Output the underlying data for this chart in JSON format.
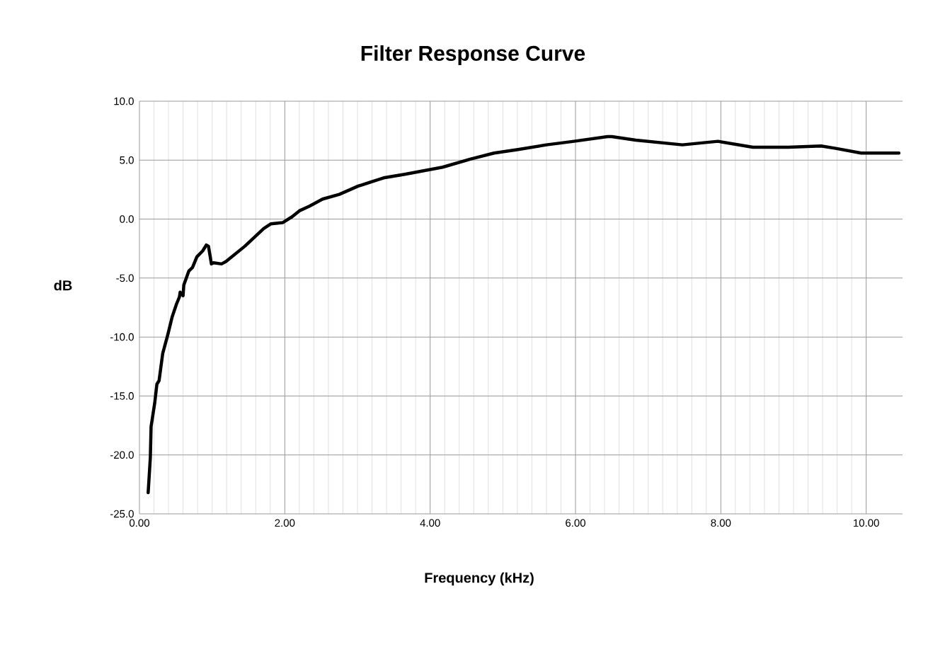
{
  "chart_data": {
    "type": "line",
    "title": "Filter Response Curve",
    "xlabel": "Frequency (kHz)",
    "ylabel": "dB",
    "xlim": [
      0,
      10.5
    ],
    "ylim": [
      -25,
      10
    ],
    "xticks": [
      {
        "value": 0,
        "label": "0.00"
      },
      {
        "value": 2,
        "label": "2.00"
      },
      {
        "value": 4,
        "label": "4.00"
      },
      {
        "value": 6,
        "label": "6.00"
      },
      {
        "value": 8,
        "label": "8.00"
      },
      {
        "value": 10,
        "label": "10.00"
      }
    ],
    "yticks": [
      {
        "value": -25,
        "label": "-25.0"
      },
      {
        "value": -20,
        "label": "-20.0"
      },
      {
        "value": -15,
        "label": "-15.0"
      },
      {
        "value": -10,
        "label": "-10.0"
      },
      {
        "value": -5,
        "label": "-5.0"
      },
      {
        "value": 0,
        "label": "0.0"
      },
      {
        "value": 5,
        "label": "5.0"
      },
      {
        "value": 10,
        "label": "10.0"
      }
    ],
    "grid": true,
    "legend": false,
    "marker": "none",
    "line_style": "solid",
    "series": [
      {
        "color": "#000000",
        "x": [
          0.12,
          0.15,
          0.16,
          0.21,
          0.24,
          0.27,
          0.32,
          0.39,
          0.45,
          0.51,
          0.55,
          0.56,
          0.6,
          0.61,
          0.68,
          0.73,
          0.79,
          0.87,
          0.92,
          0.95,
          0.99,
          1.02,
          1.13,
          1.19,
          1.45,
          1.71,
          1.81,
          1.97,
          2.1,
          2.2,
          2.34,
          2.52,
          2.75,
          3.01,
          3.36,
          3.65,
          3.91,
          4.17,
          4.56,
          4.88,
          5.21,
          5.6,
          5.98,
          6.44,
          6.5,
          6.83,
          7.47,
          7.96,
          8.44,
          8.93,
          9.38,
          9.58,
          9.93,
          10.45
        ],
        "values": [
          -23.2,
          -20.2,
          -17.6,
          -15.6,
          -14.0,
          -13.7,
          -11.4,
          -9.8,
          -8.3,
          -7.2,
          -6.6,
          -6.2,
          -6.5,
          -5.6,
          -4.4,
          -4.1,
          -3.2,
          -2.7,
          -2.2,
          -2.3,
          -3.8,
          -3.7,
          -3.8,
          -3.6,
          -2.3,
          -0.8,
          -0.4,
          -0.3,
          0.2,
          0.7,
          1.1,
          1.7,
          2.1,
          2.8,
          3.5,
          3.8,
          4.1,
          4.4,
          5.1,
          5.6,
          5.9,
          6.3,
          6.6,
          7.0,
          7.0,
          6.7,
          6.3,
          6.6,
          6.1,
          6.1,
          6.2,
          6.0,
          5.6,
          5.6
        ]
      }
    ]
  }
}
